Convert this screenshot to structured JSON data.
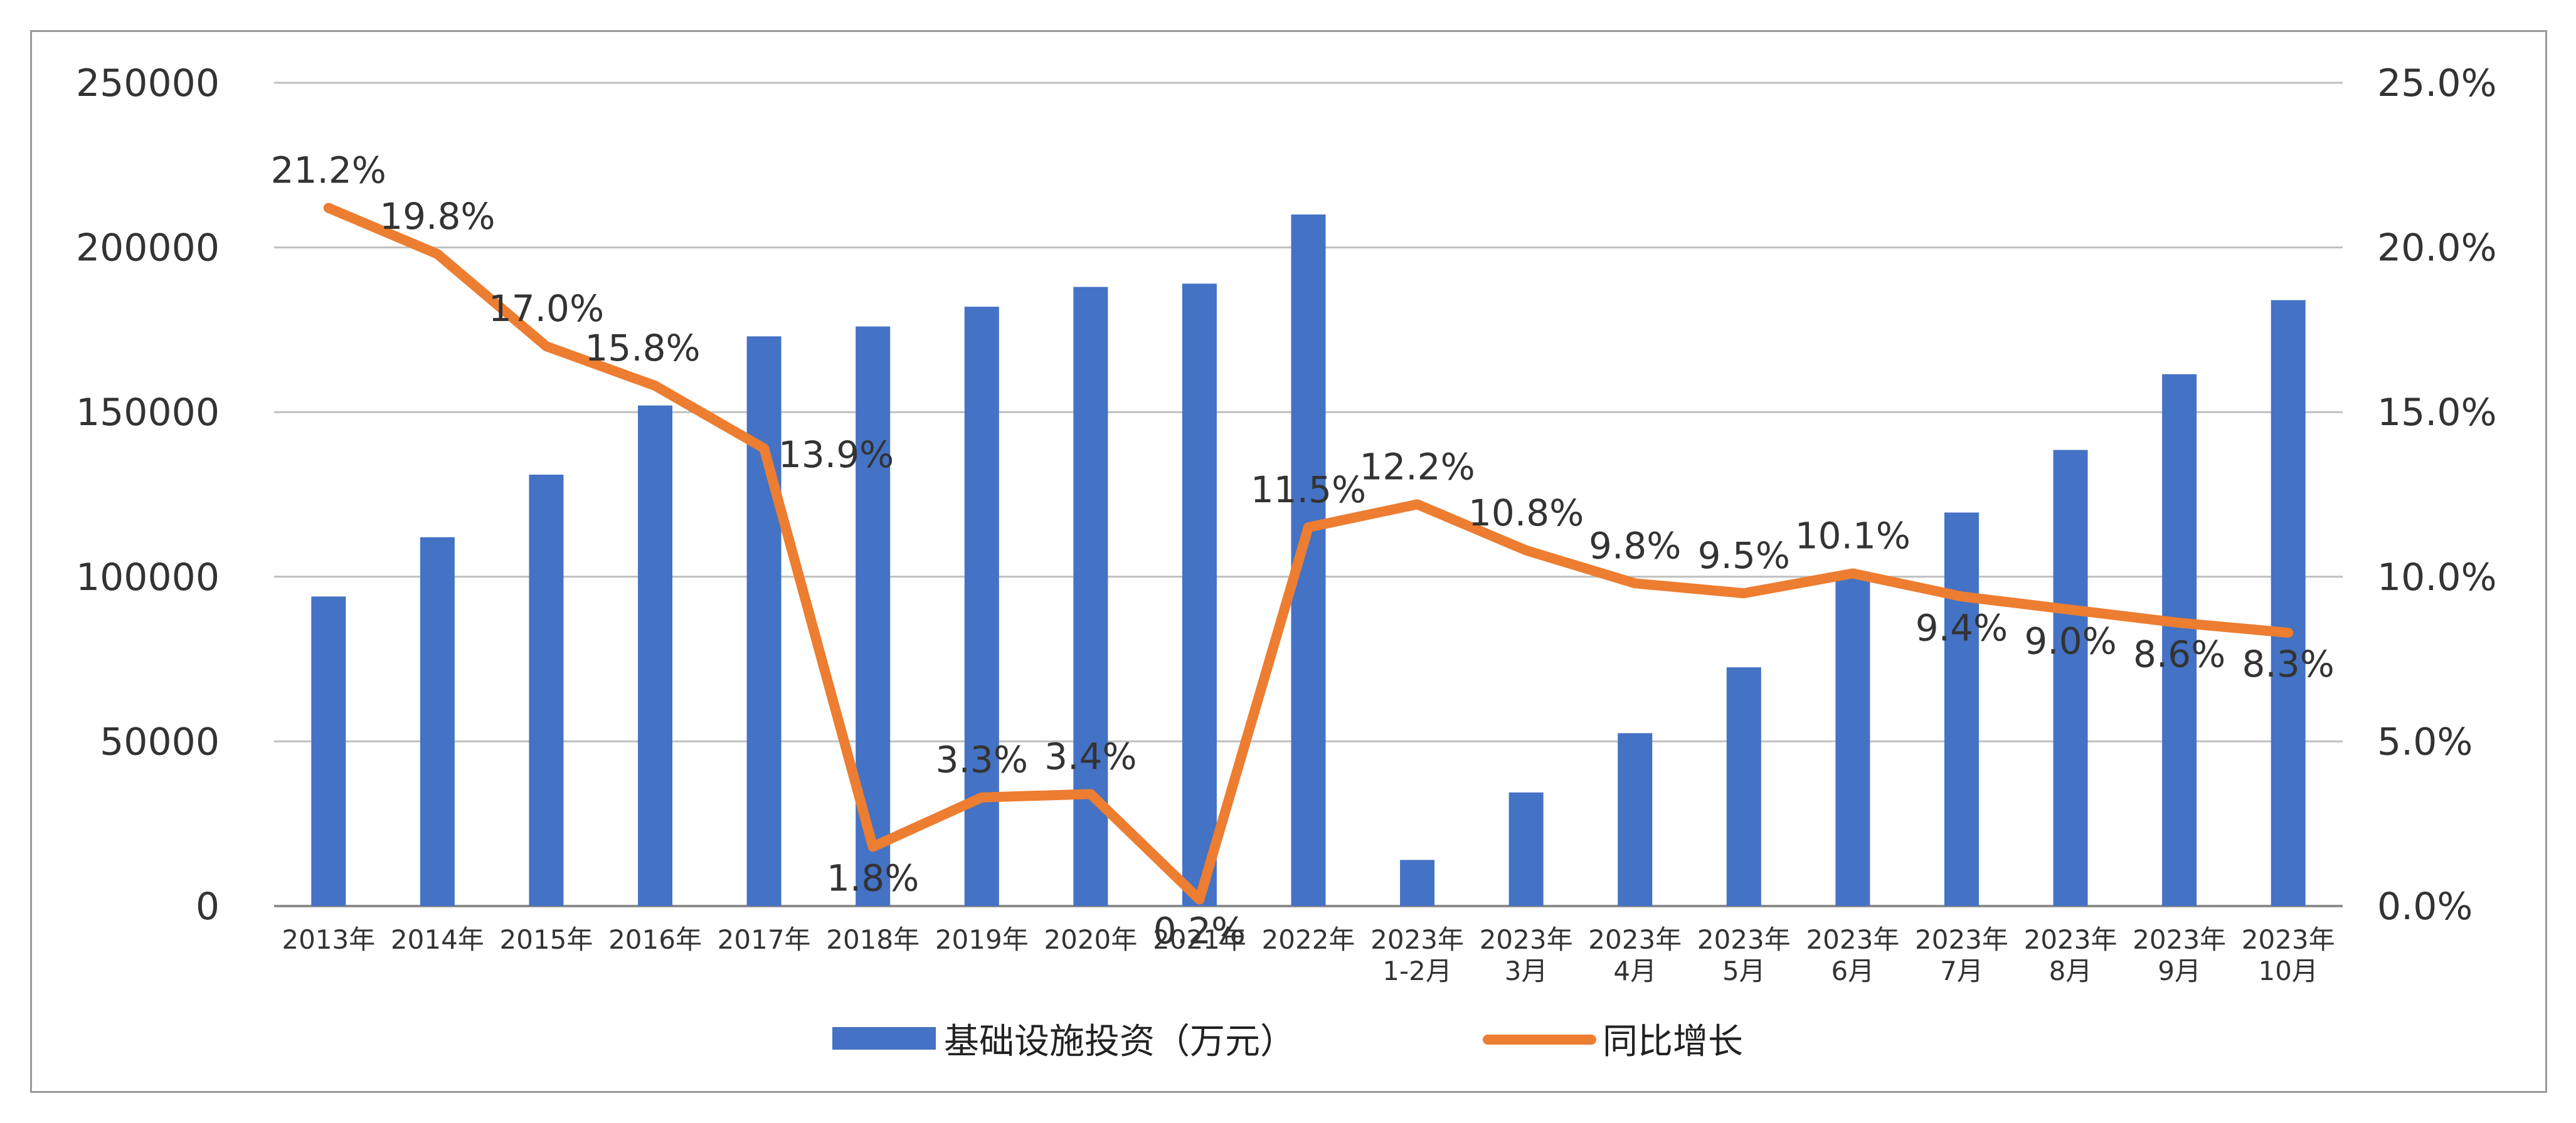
{
  "chart_data": {
    "type": "bar",
    "categories": [
      [
        "2013年"
      ],
      [
        "2014年"
      ],
      [
        "2015年"
      ],
      [
        "2016年"
      ],
      [
        "2017年"
      ],
      [
        "2018年"
      ],
      [
        "2019年"
      ],
      [
        "2020年"
      ],
      [
        "2021年"
      ],
      [
        "2022年"
      ],
      [
        "2023年",
        "1-2月"
      ],
      [
        "2023年",
        "3月"
      ],
      [
        "2023年",
        "4月"
      ],
      [
        "2023年",
        "5月"
      ],
      [
        "2023年",
        "6月"
      ],
      [
        "2023年",
        "7月"
      ],
      [
        "2023年",
        "8月"
      ],
      [
        "2023年",
        "9月"
      ],
      [
        "2023年",
        "10月"
      ]
    ],
    "series": [
      {
        "name": "基础设施投资（万元）",
        "type": "bar",
        "axis": "left",
        "color": "#4472C4",
        "values": [
          94000,
          112000,
          131000,
          152000,
          173000,
          176000,
          182000,
          188000,
          189000,
          210000,
          14000,
          34500,
          52500,
          72500,
          100000,
          119500,
          138500,
          161500,
          184000
        ]
      },
      {
        "name": "同比增长",
        "type": "line",
        "axis": "right",
        "color": "#ED7D31",
        "values": [
          21.2,
          19.8,
          17.0,
          15.8,
          13.9,
          1.8,
          3.3,
          3.4,
          0.2,
          11.5,
          12.2,
          10.8,
          9.8,
          9.5,
          10.1,
          9.4,
          9.0,
          8.6,
          8.3
        ],
        "labels": [
          "21.2%",
          "19.8%",
          "17.0%",
          "15.8%",
          "13.9%",
          "1.8%",
          "3.3%",
          "3.4%",
          "0.2%",
          "11.5%",
          "12.2%",
          "10.8%",
          "9.8%",
          "9.5%",
          "10.1%",
          "9.4%",
          "9.0%",
          "8.6%",
          "8.3%"
        ]
      }
    ],
    "y_left": {
      "ylim": [
        0,
        250000
      ],
      "ticks": [
        "0",
        "50000",
        "100000",
        "150000",
        "200000",
        "250000"
      ]
    },
    "y_right": {
      "ylim": [
        0,
        25
      ],
      "ticks": [
        "0.0%",
        "5.0%",
        "10.0%",
        "15.0%",
        "20.0%",
        "25.0%"
      ]
    },
    "grid": true,
    "legend": {
      "position": "bottom",
      "items": [
        "基础设施投资（万元）",
        "同比增长"
      ]
    },
    "title": "",
    "xlabel": "",
    "ylabel": ""
  }
}
